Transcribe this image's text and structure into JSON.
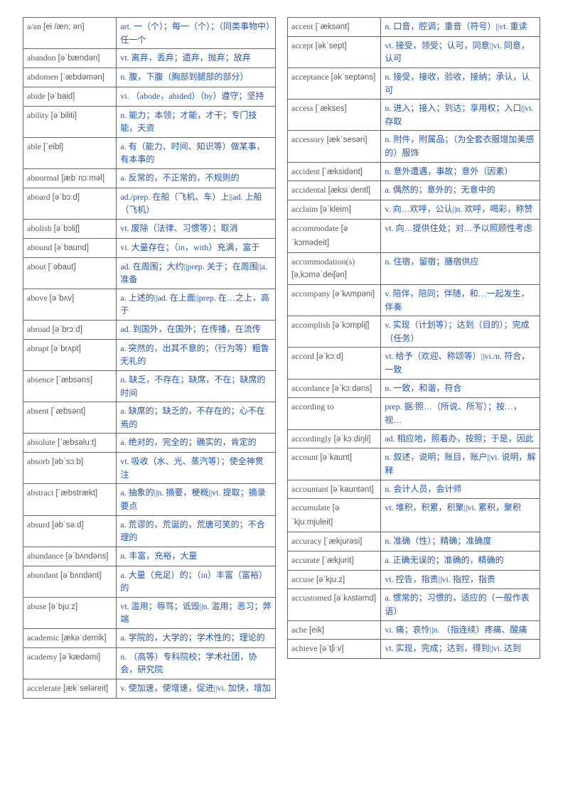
{
  "colors": {
    "word_text": "#5a5a5a",
    "def_text": "#2456a8",
    "border": "#666666",
    "background": "#ffffff"
  },
  "typography": {
    "base_fontsize": 12,
    "ipa_fontsize": 11.5,
    "line_height": 1.55
  },
  "layout": {
    "columns": 2,
    "word_col_width_pct": 37,
    "def_col_width_pct": 63
  },
  "left": [
    {
      "word": "a/an",
      "ipa": "[ei /æn; ən]",
      "def": "art. 一（个）；每一（个）；（同类事物中）任一个"
    },
    {
      "word": "abandon",
      "ipa": "[əˈbændən]",
      "def": "vt. 离弃，丢弃；遗弃，抛弃；放弃"
    },
    {
      "word": "abdomen",
      "ipa": "[ˈæbdəmən]",
      "def": "n. 腹，下腹（胸部到腿部的部分）"
    },
    {
      "word": "abide",
      "ipa": "[əˈbaid]",
      "def": "vi. （abode，abided）（by）遵守；坚持"
    },
    {
      "word": "ability",
      "ipa": "[əˈbiliti]",
      "def": "n. 能力；本领；才能，才干；专门技能，天资"
    },
    {
      "word": "able",
      "ipa": "[ˈeibl]",
      "def": "a. 有（能力、时间、知识等）做某事，有本事的"
    },
    {
      "word": "abnormal",
      "ipa": "[æbˈnɔːməl]",
      "def": "a. 反常的，不正常的，不规则的"
    },
    {
      "word": "aboard",
      "ipa": "[əˈbɔːd]",
      "def": "ad./prep. 在船（飞机、车）上||ad. 上船（飞机）"
    },
    {
      "word": "abolish",
      "ipa": "[əˈbɔliʃ]",
      "def": "vt. 废除（法律、习惯等）；取消"
    },
    {
      "word": "abound",
      "ipa": "[əˈbaund]",
      "def": "vi. 大量存在；（in，with）充满，富于"
    },
    {
      "word": "about",
      "ipa": "[ˈəbaut]",
      "def": "ad. 在周围；大约||prep. 关于；在周围||a. 准备"
    },
    {
      "word": "above",
      "ipa": "[əˈbʌv]",
      "def": "a. 上述的||ad. 在上面||prep. 在…之上，高于"
    },
    {
      "word": "abroad",
      "ipa": "[əˈbrɔːd]",
      "def": "ad. 到国外，在国外；在传播，在流传"
    },
    {
      "word": "abrupt",
      "ipa": "[əˈbrʌpt]",
      "def": "a. 突然的，出其不意的；（行为等）粗鲁无礼的"
    },
    {
      "word": "absence",
      "ipa": "[ˈæbsəns]",
      "def": "n. 缺乏，不存在；缺席，不在；缺席的时间"
    },
    {
      "word": "absent",
      "ipa": "[ˈæbsənt]",
      "def": "a. 缺席的；缺乏的，不存在的；心不在焉的"
    },
    {
      "word": "absolute",
      "ipa": "[ˈæbsəluːt]",
      "def": "a. 绝对的，完全的；确实的，肯定的"
    },
    {
      "word": "absorb",
      "ipa": "[əbˈsɔːb]",
      "def": "vt. 吸收（水、光、蒸汽等）；使全神贯注"
    },
    {
      "word": "abstract",
      "ipa": "[ˈæbstrækt]",
      "def": "a. 抽象的||n. 摘要，梗概||vt. 提取；摘录要点"
    },
    {
      "word": "absurd",
      "ipa": "[əbˈsəːd]",
      "def": "a. 荒谬的，荒诞的，荒唐可笑的；不合理的"
    },
    {
      "word": "abundance",
      "ipa": "[əˈbʌndəns]",
      "def": "n. 丰富，充裕，大量"
    },
    {
      "word": "abundant",
      "ipa": "[əˈbʌndənt]",
      "def": "a. 大量（充足）的；（in）丰富（富裕）的"
    },
    {
      "word": "abuse",
      "ipa": "[əˈbjuːz]",
      "def": "vt. 滥用；辱骂；诋毁||n. 滥用；恶习；弊端"
    },
    {
      "word": "academic",
      "ipa": "[ækəˈdemik]",
      "def": "a. 学院的，大学的；学术性的；理论的"
    },
    {
      "word": "academy",
      "ipa": "[əˈkædəmi]",
      "def": "n. （高等）专科院校；学术社团，协会，研究院"
    },
    {
      "word": "accelerate",
      "ipa": "[ækˈseləreit]",
      "def": "v. 使加速，使增速，促进||vi. 加快，增加"
    }
  ],
  "right": [
    {
      "word": "accent",
      "ipa": "[ˈæksənt]",
      "def": "n. 口音，腔调；重音（符号）||vt. 重读"
    },
    {
      "word": "accept",
      "ipa": "[əkˈsept]",
      "def": "vt. 接受，领受；认可，同意||vi. 同意，认可"
    },
    {
      "word": "acceptance",
      "ipa": "[əkˈseptəns]",
      "def": "n. 接受，接收，验收，接纳；承认，认可"
    },
    {
      "word": "access",
      "ipa": "[ˈækses]",
      "def": "n. 进入；接入；到达；享用权；入口||vi. 存取"
    },
    {
      "word": "accessory",
      "ipa": "[ækˈsesəri]",
      "def": "n. 附件，附属品；（为全套衣服增加美感的）服饰"
    },
    {
      "word": "accident",
      "ipa": "[ˈæksidənt]",
      "def": "n. 意外遭遇，事故；意外（因素）"
    },
    {
      "word": "accidental",
      "ipa": "[æksiˈdentl]",
      "def": "a. 偶然的；意外的；无意中的"
    },
    {
      "word": "acclaim",
      "ipa": "[əˈkleim]",
      "def": "v. 向…欢呼，公认||n. 欢呼，喝彩，称赞"
    },
    {
      "word": "accommodate",
      "ipa": "[əˈkɔmədeit]",
      "def": "vt. 向…提供住处；对…予以照顾性考虑"
    },
    {
      "word": "accommodation(s)",
      "ipa": "[ə,kɔməˈdeiʃən]",
      "def": "n. 住宿，留宿；膳宿供应"
    },
    {
      "word": "accompany",
      "ipa": "[əˈkʌmpəni]",
      "def": "v. 陪伴，陪同；伴随，和…一起发生，伴奏"
    },
    {
      "word": "accomplish",
      "ipa": "[əˈkɔmpliʃ]",
      "def": "v. 实现（计划等）；达到（目的）；完成（任务）"
    },
    {
      "word": "accord",
      "ipa": "[əˈkɔːd]",
      "def": "vt. 给予（欢迎、称颂等）||vi./n. 符合，一致"
    },
    {
      "word": "accordance",
      "ipa": "[əˈkɔːdəns]",
      "def": "n. 一致，和谐，符合"
    },
    {
      "word": "according to",
      "ipa": "",
      "def": "prep. 据/照…（所说、所写）；按…，视…"
    },
    {
      "word": "accordingly",
      "ipa": "[əˈkɔːdiŋli]",
      "def": "ad. 相应地，照着办，按照；于是，因此"
    },
    {
      "word": "account",
      "ipa": "[əˈkaunt]",
      "def": "n. 叙述，说明；账目，账户||vi. 说明，解释"
    },
    {
      "word": "accountant",
      "ipa": "[əˈkauntənt]",
      "def": "n. 会计人员，会计师"
    },
    {
      "word": "accumulate",
      "ipa": "[əˈkjuːmjuleit]",
      "def": "vt. 堆积，积累，积聚||vi. 累积，聚积"
    },
    {
      "word": "accuracy",
      "ipa": "[ˈækjurəsi]",
      "def": "n. 准确（性）；精确；准确度"
    },
    {
      "word": "accurate",
      "ipa": "[ˈækjurit]",
      "def": "a. 正确无误的；准确的，精确的"
    },
    {
      "word": "accuse",
      "ipa": "[əˈkjuːz]",
      "def": "vt. 控告，指责||vi. 指控，指责"
    },
    {
      "word": "accustomed",
      "ipa": "[əˈkʌstəmd]",
      "def": "a. 惯常的；习惯的，适应的（一般作表语）"
    },
    {
      "word": "ache",
      "ipa": "[eik]",
      "def": "vi. 痛；哀怜||n. （指连续）疼痛、酸痛"
    },
    {
      "word": "achieve",
      "ipa": "[əˈtʃiːv]",
      "def": "vt. 实现，完成；达到，得到||vi. 达到"
    }
  ]
}
